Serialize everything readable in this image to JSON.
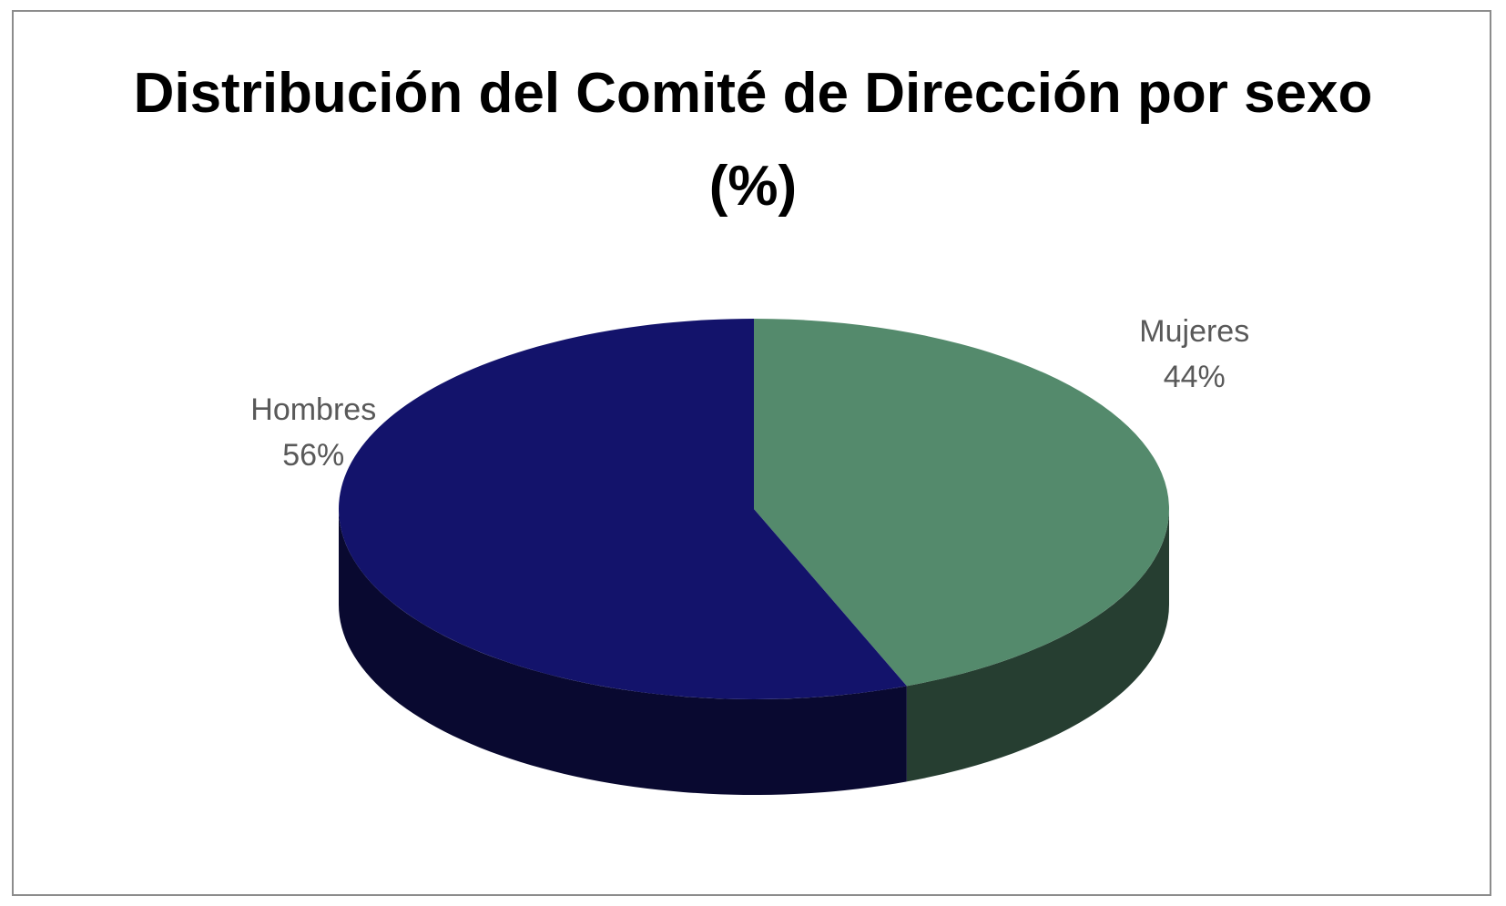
{
  "chart_data": {
    "type": "pie",
    "title": "Distribución del Comité de Dirección por sexo (%)",
    "categories": [
      "Mujeres",
      "Hombres"
    ],
    "values": [
      44,
      56
    ],
    "value_labels": [
      "44%",
      "56%"
    ],
    "colors": [
      "#548a6c",
      "#13136b"
    ]
  }
}
